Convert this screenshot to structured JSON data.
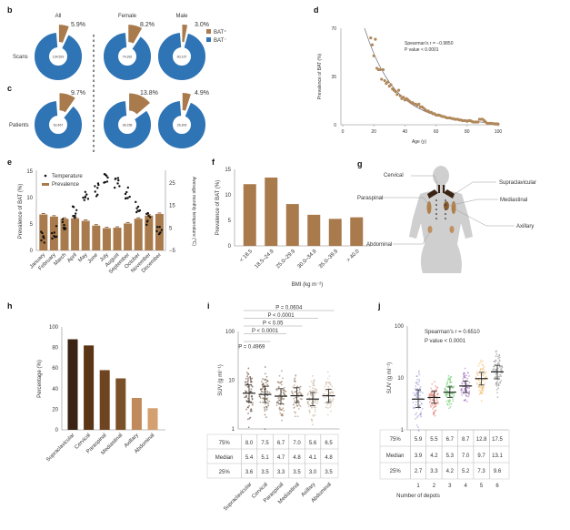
{
  "colors": {
    "bat_pos": "#a87a4c",
    "bat_neg": "#2f74b5",
    "bar": "#a87a4c",
    "text": "#333333"
  },
  "panel_labels": {
    "b": "b",
    "c": "c",
    "d": "d",
    "e": "e",
    "f": "f",
    "g": "g",
    "h": "h",
    "i": "i",
    "j": "j"
  },
  "chart_data": [
    {
      "id": "b",
      "type": "pie",
      "row_label": "Scans",
      "legend": [
        "BAT⁺",
        "BAT⁻"
      ],
      "groups": [
        {
          "name": "All",
          "pct": "5.9%",
          "value": 5.9,
          "n": "134,529"
        },
        {
          "name": "Female",
          "pct": "8.2%",
          "value": 8.2,
          "n": "74,392"
        },
        {
          "name": "Male",
          "pct": "3.0%",
          "value": 3.0,
          "n": "60,137"
        }
      ]
    },
    {
      "id": "c",
      "type": "pie",
      "row_label": "Patients",
      "groups": [
        {
          "name": "All",
          "pct": "9.7%",
          "value": 9.7,
          "n": "62,467"
        },
        {
          "name": "Female",
          "pct": "13.8%",
          "value": 13.8,
          "n": "36,158"
        },
        {
          "name": "Male",
          "pct": "4.9%",
          "value": 4.9,
          "n": "26,309"
        }
      ]
    },
    {
      "id": "d",
      "type": "scatter",
      "xlabel": "Age (y)",
      "ylabel": "Prevalence of BAT (%)",
      "xlim": [
        0,
        100
      ],
      "ylim": [
        0,
        70
      ],
      "xticks": [
        "0",
        "20",
        "40",
        "60",
        "80",
        "100"
      ],
      "yticks": [
        "0",
        "35",
        "70"
      ],
      "annotation": [
        "Spearman's r = −0.9850",
        "P value < 0.0001"
      ],
      "points": [
        [
          18,
          63
        ],
        [
          19,
          58
        ],
        [
          20,
          50
        ],
        [
          21,
          62
        ],
        [
          22,
          41
        ],
        [
          23,
          40
        ],
        [
          24,
          40
        ],
        [
          25,
          33
        ],
        [
          26,
          40
        ],
        [
          27,
          32
        ],
        [
          28,
          30
        ],
        [
          29,
          31
        ],
        [
          30,
          28
        ],
        [
          31,
          29
        ],
        [
          32,
          26
        ],
        [
          33,
          25
        ],
        [
          34,
          24
        ],
        [
          35,
          22
        ],
        [
          36,
          25
        ],
        [
          37,
          21
        ],
        [
          38,
          19
        ],
        [
          39,
          20
        ],
        [
          40,
          18
        ],
        [
          41,
          19
        ],
        [
          42,
          18
        ],
        [
          43,
          17
        ],
        [
          44,
          16
        ],
        [
          45,
          16
        ],
        [
          46,
          15
        ],
        [
          47,
          15
        ],
        [
          48,
          14
        ],
        [
          49,
          15
        ],
        [
          50,
          13
        ],
        [
          51,
          13
        ],
        [
          52,
          12
        ],
        [
          53,
          11
        ],
        [
          54,
          10
        ],
        [
          55,
          10
        ],
        [
          56,
          9
        ],
        [
          57,
          9
        ],
        [
          58,
          8
        ],
        [
          59,
          8
        ],
        [
          60,
          7
        ],
        [
          61,
          7
        ],
        [
          62,
          7
        ],
        [
          63,
          6.5
        ],
        [
          64,
          6
        ],
        [
          65,
          6
        ],
        [
          66,
          5.5
        ],
        [
          67,
          5
        ],
        [
          68,
          5
        ],
        [
          69,
          5
        ],
        [
          70,
          4.5
        ],
        [
          71,
          4.5
        ],
        [
          72,
          4
        ],
        [
          73,
          4
        ],
        [
          74,
          4
        ],
        [
          75,
          3.5
        ],
        [
          76,
          3.5
        ],
        [
          77,
          3
        ],
        [
          78,
          3
        ],
        [
          79,
          3
        ],
        [
          80,
          2.5
        ],
        [
          81,
          3
        ],
        [
          82,
          3
        ],
        [
          83,
          2.5
        ],
        [
          84,
          2
        ],
        [
          85,
          2
        ],
        [
          86,
          2
        ],
        [
          87,
          2
        ],
        [
          88,
          4
        ],
        [
          89,
          4
        ],
        [
          90,
          4
        ],
        [
          91,
          3
        ],
        [
          92,
          2
        ],
        [
          93,
          1
        ],
        [
          94,
          1
        ],
        [
          95,
          1
        ],
        [
          96,
          1
        ],
        [
          97,
          0.8
        ],
        [
          98,
          0.5
        ],
        [
          99,
          0.5
        ],
        [
          100,
          0.5
        ]
      ]
    },
    {
      "id": "e",
      "type": "bar",
      "ylabel": "Prevalence of BAT (%)",
      "y2label": "Average monthly temperature (°C)",
      "ylim": [
        0,
        15
      ],
      "y2lim": [
        -5,
        25
      ],
      "yticks": [
        "0",
        "5",
        "10",
        "15"
      ],
      "y2ticks": [
        "−5",
        "5",
        "15",
        "25"
      ],
      "legend": [
        "Temperature",
        "Prevalence"
      ],
      "categories": [
        "January",
        "February",
        "March",
        "April",
        "May",
        "June",
        "July",
        "August",
        "September",
        "October",
        "November",
        "December"
      ],
      "prevalence": [
        6.8,
        6.4,
        6.0,
        6.1,
        5.6,
        4.7,
        4.2,
        4.3,
        5.1,
        6.0,
        6.6,
        6.9
      ],
      "temperature": [
        1,
        3,
        6,
        12,
        19,
        22,
        26,
        25,
        21,
        15,
        9,
        3
      ]
    },
    {
      "id": "f",
      "type": "bar",
      "xlabel": "BMI (kg m⁻²)",
      "ylabel": "Prevalence of BAT (%)",
      "ylim": [
        0,
        15
      ],
      "yticks": [
        "0",
        "5",
        "10",
        "15"
      ],
      "categories": [
        "< 18.5",
        "18.5–24.9",
        "25.0–29.9",
        "30.0–34.9",
        "35.0–39.9",
        "> 40.0"
      ],
      "values": [
        12.1,
        13.4,
        8.2,
        6.1,
        5.3,
        5.6
      ]
    },
    {
      "id": "h",
      "type": "bar",
      "ylabel": "Percentage (%)",
      "ylim": [
        0,
        100
      ],
      "yticks": [
        "0",
        "20",
        "40",
        "60",
        "80",
        "100"
      ],
      "categories": [
        "Supraclavicular",
        "Cervical",
        "Paraspinal",
        "Mediastinal",
        "Axillary",
        "Abdominal"
      ],
      "values": [
        88,
        82,
        58,
        50,
        31,
        21
      ],
      "colors": [
        "#3a2314",
        "#5a3516",
        "#6e4520",
        "#7a5028",
        "#c08a5a",
        "#d4a070"
      ]
    },
    {
      "id": "i",
      "type": "scatter",
      "ylabel": "SUV (g ml⁻¹)",
      "yscale": "log",
      "yticks": [
        "1",
        "10",
        "100"
      ],
      "categories": [
        "Supraclavicular",
        "Cervical",
        "Paraspinal",
        "Mediastinal",
        "Axillary",
        "Abdominal"
      ],
      "table": {
        "rows": [
          "75%",
          "Median",
          "25%"
        ],
        "values": [
          [
            "8.0",
            "7.5",
            "6.7",
            "7.0",
            "5.6",
            "6.5"
          ],
          [
            "5.4",
            "5.1",
            "4.7",
            "4.8",
            "4.1",
            "4.8"
          ],
          [
            "3.6",
            "3.5",
            "3.3",
            "3.5",
            "3.0",
            "3.5"
          ]
        ]
      },
      "q75": [
        8.0,
        7.5,
        6.7,
        7.0,
        5.6,
        6.5
      ],
      "median": [
        5.4,
        5.1,
        4.7,
        4.8,
        4.1,
        4.8
      ],
      "q25": [
        3.6,
        3.5,
        3.3,
        3.5,
        3.0,
        3.5
      ],
      "colors": [
        "#4a3220",
        "#6a4a30",
        "#8a6a50",
        "#9a8068",
        "#c0a890",
        "#d0bca8"
      ],
      "comparisons": [
        {
          "to": 5,
          "label": "P = 0.0604"
        },
        {
          "to": 4,
          "label": "P < 0.0001"
        },
        {
          "to": 3,
          "label": "P < 0.05"
        },
        {
          "to": 2,
          "label": "P < 0.0001"
        },
        {
          "to": 1,
          "label": "P = 0.4969"
        }
      ]
    },
    {
      "id": "j",
      "type": "scatter",
      "xlabel": "Number of depots",
      "ylabel": "SUV (g ml⁻¹)",
      "yscale": "log",
      "yticks": [
        "1",
        "10",
        "100"
      ],
      "annotation": [
        "Spearman's r = 0.6510",
        "P value < 0.0001"
      ],
      "categories": [
        "1",
        "2",
        "3",
        "4",
        "5",
        "6"
      ],
      "table": {
        "rows": [
          "75%",
          "Median",
          "25%"
        ],
        "values": [
          [
            "5.9",
            "5.5",
            "6.7",
            "8.7",
            "12.8",
            "17.5"
          ],
          [
            "3.9",
            "4.2",
            "5.3",
            "7.0",
            "9.7",
            "13.1"
          ],
          [
            "2.7",
            "3.3",
            "4.2",
            "5.2",
            "7.3",
            "9.6"
          ]
        ]
      },
      "q75": [
        5.9,
        5.5,
        6.7,
        8.7,
        12.8,
        17.5
      ],
      "median": [
        3.9,
        4.2,
        5.3,
        7.0,
        9.7,
        13.1
      ],
      "q25": [
        2.7,
        3.3,
        4.2,
        5.2,
        7.3,
        9.6
      ],
      "colors": [
        "#9090d0",
        "#e07060",
        "#5cc25c",
        "#a070c0",
        "#f0b860",
        "#888888"
      ]
    }
  ],
  "panel_g": {
    "labels": [
      "Cervical",
      "Supraclavicular",
      "Paraspinal",
      "Mediastinal",
      "Axillary",
      "Abdominal"
    ]
  }
}
